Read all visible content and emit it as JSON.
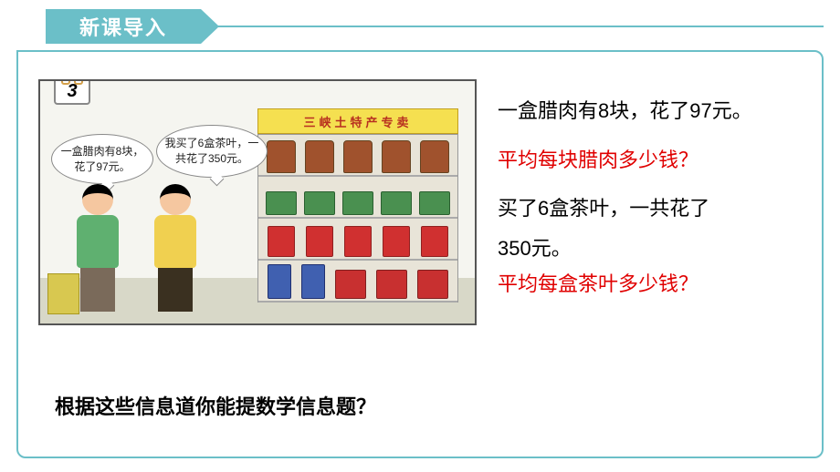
{
  "header": {
    "tab_label": "新课导入"
  },
  "illustration": {
    "example_number": "3",
    "store_sign": "三峡土特产专卖",
    "bubble1_text": "一盒腊肉有8块，花了97元。",
    "bubble2_text": "我买了6盒茶叶，一共花了350元。"
  },
  "text": {
    "line1": "一盒腊肉有8块，花了97元。",
    "q1": "平均每块腊肉多少钱？",
    "line2a": "买了6盒茶叶，一共花了",
    "line2b": "350元。",
    "q2": "平均每盒茶叶多少钱？"
  },
  "bottom_question": "根据这些信息道你能提数学信息题？",
  "colors": {
    "accent": "#6bbfc8",
    "highlight": "#e00000",
    "sign_bg": "#f5e050",
    "sign_text": "#b83020"
  }
}
